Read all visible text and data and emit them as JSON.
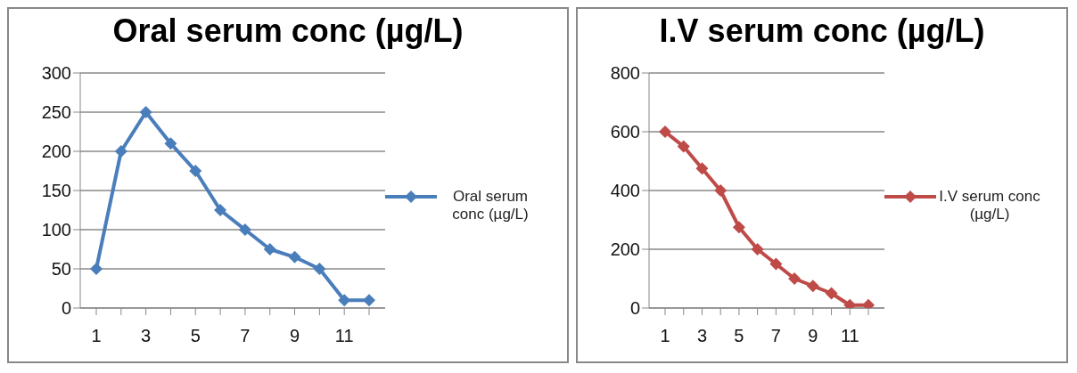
{
  "chart_data": [
    {
      "type": "line",
      "title": "Oral serum conc (µg/L)",
      "categories": [
        "1",
        null,
        "3",
        null,
        "5",
        null,
        "7",
        null,
        "9",
        null,
        "11",
        null
      ],
      "series": [
        {
          "name": "Oral serum conc (µg/L)",
          "color": "#4a7ebb",
          "values": [
            50,
            200,
            250,
            210,
            175,
            125,
            100,
            75,
            65,
            50,
            10,
            10
          ]
        }
      ],
      "ylim": [
        0,
        300
      ],
      "yticks": [
        0,
        50,
        100,
        150,
        200,
        250,
        300
      ],
      "grid": "y",
      "legend": "right",
      "marker": "diamond",
      "line_style": "solid"
    },
    {
      "type": "line",
      "title": "I.V serum conc (µg/L)",
      "categories": [
        "1",
        null,
        "3",
        null,
        "5",
        null,
        "7",
        null,
        "9",
        null,
        "11",
        null
      ],
      "series": [
        {
          "name": "I.V serum conc (µg/L)",
          "color": "#be4b48",
          "values": [
            600,
            550,
            475,
            400,
            275,
            200,
            150,
            100,
            75,
            50,
            10,
            10
          ]
        }
      ],
      "ylim": [
        0,
        800
      ],
      "yticks": [
        0,
        200,
        400,
        600,
        800
      ],
      "grid": "y",
      "legend": "right",
      "marker": "diamond",
      "line_style": "solid"
    }
  ]
}
